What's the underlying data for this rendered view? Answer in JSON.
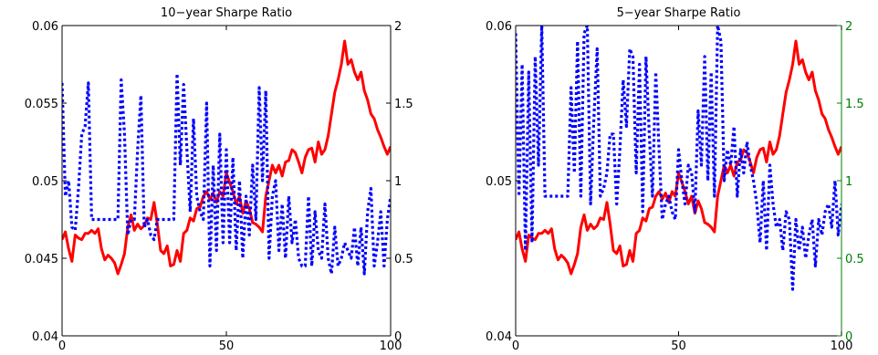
{
  "chart_data": [
    {
      "type": "line",
      "title": "10−year Sharpe Ratio",
      "xlim": [
        0,
        100
      ],
      "ylim_left": [
        0.04,
        0.06
      ],
      "ylim_right": [
        0,
        2
      ],
      "xticks": [
        "0",
        "50",
        "100"
      ],
      "yticks_left": [
        "0.04",
        "0.045",
        "0.05",
        "0.055",
        "0.06"
      ],
      "yticks_right": [
        "0",
        "0.5",
        "1",
        "1.5",
        "2"
      ],
      "right_axis_color": "#000000",
      "grid": false,
      "series": [
        {
          "axis": "left",
          "color": "#ff0000",
          "style": "solid",
          "x": [
            0,
            1,
            2,
            3,
            4,
            5,
            6,
            7,
            8,
            9,
            10,
            11,
            12,
            13,
            14,
            15,
            16,
            17,
            18,
            19,
            20,
            21,
            22,
            23,
            24,
            25,
            26,
            27,
            28,
            29,
            30,
            31,
            32,
            33,
            34,
            35,
            36,
            37,
            38,
            39,
            40,
            41,
            42,
            43,
            44,
            45,
            46,
            47,
            48,
            49,
            50,
            51,
            52,
            53,
            54,
            55,
            56,
            57,
            58,
            59,
            60,
            61,
            62,
            63,
            64,
            65,
            66,
            67,
            68,
            69,
            70,
            71,
            72,
            73,
            74,
            75,
            76,
            77,
            78,
            79,
            80,
            81,
            82,
            83,
            84,
            85,
            86,
            87,
            88,
            89,
            90,
            91,
            92,
            93,
            94,
            95,
            96,
            97,
            98,
            99,
            100
          ],
          "y": [
            0.0462,
            0.0467,
            0.0456,
            0.0448,
            0.0465,
            0.0463,
            0.0462,
            0.0466,
            0.0466,
            0.0468,
            0.0466,
            0.0469,
            0.0456,
            0.0449,
            0.0452,
            0.045,
            0.0447,
            0.044,
            0.0446,
            0.0453,
            0.047,
            0.0478,
            0.0468,
            0.0472,
            0.0469,
            0.0471,
            0.0476,
            0.0475,
            0.0486,
            0.0472,
            0.0455,
            0.0453,
            0.0458,
            0.0445,
            0.0446,
            0.0455,
            0.0448,
            0.0466,
            0.0468,
            0.0476,
            0.0474,
            0.0482,
            0.0483,
            0.049,
            0.0493,
            0.0488,
            0.0492,
            0.0486,
            0.0493,
            0.049,
            0.0505,
            0.0499,
            0.0493,
            0.0485,
            0.049,
            0.0479,
            0.0487,
            0.0482,
            0.0473,
            0.0472,
            0.047,
            0.0467,
            0.049,
            0.05,
            0.051,
            0.0505,
            0.051,
            0.0503,
            0.0512,
            0.0513,
            0.052,
            0.0518,
            0.0512,
            0.0505,
            0.0515,
            0.052,
            0.0521,
            0.0512,
            0.0525,
            0.0517,
            0.052,
            0.0529,
            0.0543,
            0.0557,
            0.0565,
            0.0575,
            0.059,
            0.0575,
            0.0578,
            0.057,
            0.0565,
            0.057,
            0.0558,
            0.0552,
            0.0543,
            0.054,
            0.0533,
            0.0528,
            0.0522,
            0.0517,
            0.0522
          ]
        },
        {
          "axis": "right",
          "color": "#0000ff",
          "style": "dotted",
          "x": [
            0,
            1,
            2,
            3,
            4,
            5,
            6,
            7,
            8,
            9,
            10,
            11,
            12,
            13,
            14,
            15,
            16,
            17,
            18,
            19,
            20,
            21,
            22,
            23,
            24,
            25,
            26,
            27,
            28,
            29,
            30,
            31,
            32,
            33,
            34,
            35,
            36,
            37,
            38,
            39,
            40,
            41,
            42,
            43,
            44,
            45,
            46,
            47,
            48,
            49,
            50,
            51,
            52,
            53,
            54,
            55,
            56,
            57,
            58,
            59,
            60,
            61,
            62,
            63,
            64,
            65,
            66,
            67,
            68,
            69,
            70,
            71,
            72,
            73,
            74,
            75,
            76,
            77,
            78,
            79,
            80,
            81,
            82,
            83,
            84,
            85,
            86,
            87,
            88,
            89,
            90,
            91,
            92,
            93,
            94,
            95,
            96,
            97,
            98,
            99,
            100
          ],
          "y": [
            1.63,
            0.9,
            1.0,
            0.7,
            0.68,
            0.95,
            1.3,
            1.35,
            1.63,
            0.75,
            0.75,
            0.75,
            0.75,
            0.75,
            0.75,
            0.75,
            0.75,
            0.75,
            1.65,
            1.3,
            0.65,
            0.75,
            0.75,
            1.2,
            1.55,
            0.7,
            0.75,
            0.65,
            0.62,
            0.75,
            0.75,
            0.75,
            0.75,
            0.75,
            0.75,
            1.69,
            1.1,
            1.62,
            1.2,
            0.8,
            1.4,
            0.9,
            0.8,
            0.75,
            1.5,
            0.45,
            1.1,
            0.55,
            1.3,
            0.6,
            1.2,
            0.6,
            1.15,
            0.55,
            1.0,
            0.5,
            0.9,
            0.65,
            1.1,
            0.75,
            1.6,
            1.0,
            1.58,
            0.5,
            0.9,
            1.0,
            0.55,
            0.85,
            0.5,
            0.9,
            0.6,
            0.75,
            0.5,
            0.45,
            0.45,
            0.9,
            0.45,
            0.8,
            0.55,
            0.5,
            0.85,
            0.5,
            0.4,
            0.7,
            0.45,
            0.5,
            0.6,
            0.55,
            0.5,
            0.7,
            0.45,
            0.7,
            0.4,
            0.8,
            0.95,
            0.45,
            0.6,
            0.8,
            0.45,
            0.75,
            0.9
          ]
        }
      ]
    },
    {
      "type": "line",
      "title": "5−year Sharpe Ratio",
      "xlim": [
        0,
        100
      ],
      "ylim_left": [
        0.04,
        0.06
      ],
      "ylim_right": [
        0,
        2
      ],
      "xticks": [
        "0",
        "50",
        "100"
      ],
      "yticks_left": [
        "0.04",
        "0.05",
        "0.06"
      ],
      "yticks_right": [
        "0",
        "0.5",
        "1",
        "1.5",
        "2"
      ],
      "right_axis_color": "#007f00",
      "grid": false,
      "series": [
        {
          "axis": "left",
          "color": "#ff0000",
          "style": "solid",
          "x": [
            0,
            1,
            2,
            3,
            4,
            5,
            6,
            7,
            8,
            9,
            10,
            11,
            12,
            13,
            14,
            15,
            16,
            17,
            18,
            19,
            20,
            21,
            22,
            23,
            24,
            25,
            26,
            27,
            28,
            29,
            30,
            31,
            32,
            33,
            34,
            35,
            36,
            37,
            38,
            39,
            40,
            41,
            42,
            43,
            44,
            45,
            46,
            47,
            48,
            49,
            50,
            51,
            52,
            53,
            54,
            55,
            56,
            57,
            58,
            59,
            60,
            61,
            62,
            63,
            64,
            65,
            66,
            67,
            68,
            69,
            70,
            71,
            72,
            73,
            74,
            75,
            76,
            77,
            78,
            79,
            80,
            81,
            82,
            83,
            84,
            85,
            86,
            87,
            88,
            89,
            90,
            91,
            92,
            93,
            94,
            95,
            96,
            97,
            98,
            99,
            100
          ],
          "y": [
            0.0462,
            0.0467,
            0.0456,
            0.0448,
            0.0465,
            0.0463,
            0.0462,
            0.0466,
            0.0466,
            0.0468,
            0.0466,
            0.0469,
            0.0456,
            0.0449,
            0.0452,
            0.045,
            0.0447,
            0.044,
            0.0446,
            0.0453,
            0.047,
            0.0478,
            0.0468,
            0.0472,
            0.0469,
            0.0471,
            0.0476,
            0.0475,
            0.0486,
            0.0472,
            0.0455,
            0.0453,
            0.0458,
            0.0445,
            0.0446,
            0.0455,
            0.0448,
            0.0466,
            0.0468,
            0.0476,
            0.0474,
            0.0482,
            0.0483,
            0.049,
            0.0493,
            0.0488,
            0.0492,
            0.0486,
            0.0493,
            0.049,
            0.0505,
            0.0499,
            0.0493,
            0.0485,
            0.049,
            0.0479,
            0.0487,
            0.0482,
            0.0473,
            0.0472,
            0.047,
            0.0467,
            0.049,
            0.05,
            0.051,
            0.0505,
            0.051,
            0.0503,
            0.0512,
            0.0513,
            0.052,
            0.0518,
            0.0512,
            0.0505,
            0.0515,
            0.052,
            0.0521,
            0.0512,
            0.0525,
            0.0517,
            0.052,
            0.0529,
            0.0543,
            0.0557,
            0.0565,
            0.0575,
            0.059,
            0.0575,
            0.0578,
            0.057,
            0.0565,
            0.057,
            0.0558,
            0.0552,
            0.0543,
            0.054,
            0.0533,
            0.0528,
            0.0522,
            0.0517,
            0.0522
          ]
        },
        {
          "axis": "right",
          "color": "#0000ff",
          "style": "dotted",
          "x": [
            0,
            1,
            2,
            3,
            4,
            5,
            6,
            7,
            8,
            9,
            10,
            11,
            12,
            13,
            14,
            15,
            16,
            17,
            18,
            19,
            20,
            21,
            22,
            23,
            24,
            25,
            26,
            27,
            28,
            29,
            30,
            31,
            32,
            33,
            34,
            35,
            36,
            37,
            38,
            39,
            40,
            41,
            42,
            43,
            44,
            45,
            46,
            47,
            48,
            49,
            50,
            51,
            52,
            53,
            54,
            55,
            56,
            57,
            58,
            59,
            60,
            61,
            62,
            63,
            64,
            65,
            66,
            67,
            68,
            69,
            70,
            71,
            72,
            73,
            74,
            75,
            76,
            77,
            78,
            79,
            80,
            81,
            82,
            83,
            84,
            85,
            86,
            87,
            88,
            89,
            90,
            91,
            92,
            93,
            94,
            95,
            96,
            97,
            98,
            99,
            100
          ],
          "y": [
            1.95,
            0.9,
            1.75,
            0.55,
            1.7,
            0.6,
            1.8,
            1.1,
            2.0,
            0.9,
            0.9,
            0.9,
            0.9,
            0.9,
            0.9,
            0.9,
            0.9,
            1.6,
            1.05,
            1.9,
            0.9,
            1.95,
            2.0,
            0.85,
            1.4,
            1.85,
            0.9,
            0.95,
            1.05,
            1.3,
            1.3,
            0.85,
            1.2,
            1.65,
            1.35,
            1.85,
            1.8,
            1.05,
            1.75,
            0.8,
            1.8,
            1.3,
            0.9,
            1.7,
            1.2,
            0.75,
            0.85,
            0.9,
            0.8,
            0.75,
            1.2,
            1.0,
            0.85,
            1.1,
            1.05,
            0.8,
            1.45,
            1.1,
            1.8,
            1.0,
            1.7,
            0.9,
            2.0,
            1.9,
            1.0,
            1.2,
            1.1,
            1.35,
            0.9,
            1.2,
            1.05,
            1.25,
            1.1,
            1.0,
            0.85,
            0.6,
            1.0,
            0.55,
            1.1,
            0.85,
            0.7,
            0.75,
            0.55,
            0.8,
            0.75,
            0.3,
            0.75,
            0.55,
            0.7,
            0.5,
            0.65,
            0.75,
            0.45,
            0.75,
            0.65,
            0.8,
            0.85,
            0.7,
            1.0,
            0.65,
            0.85
          ]
        }
      ]
    }
  ]
}
